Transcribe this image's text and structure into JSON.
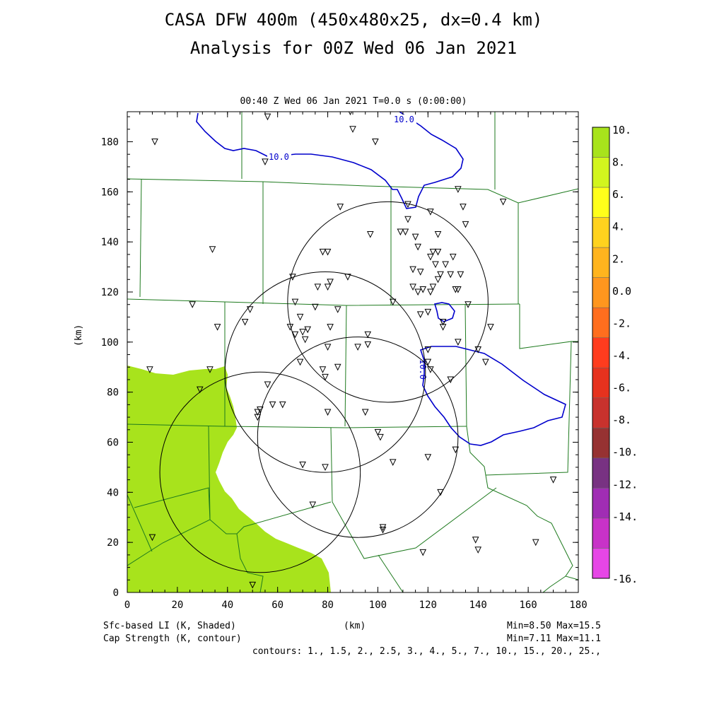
{
  "title": {
    "line1": "CASA DFW 400m (450x480x25, dx=0.4 km)",
    "line2": "Analysis for 00Z Wed 06 Jan 2021"
  },
  "subtitle": "00:40 Z Wed 06 Jan 2021   T=0.0 s (0:00:00)",
  "axes": {
    "xlabel": "(km)",
    "ylabel": "(km)",
    "x_ticks": [
      "0",
      "20",
      "40",
      "60",
      "80",
      "100",
      "120",
      "140",
      "160",
      "180"
    ],
    "y_ticks": [
      "0",
      "20",
      "40",
      "60",
      "80",
      "100",
      "120",
      "140",
      "160",
      "180"
    ],
    "xlim": [
      0,
      180
    ],
    "ylim": [
      0,
      192
    ]
  },
  "colorbar": {
    "labels": [
      "10.",
      "8.",
      "6.",
      "4.",
      "2.",
      "0.0",
      "-2.",
      "-4.",
      "-6.",
      "-8.",
      "-10.",
      "-12.",
      "-14.",
      "-16."
    ],
    "colors": [
      "#a8e31c",
      "#d2f51e",
      "#ffff1a",
      "#ffd21e",
      "#ffb41e",
      "#ff961e",
      "#ff6e1e",
      "#ff3c1e",
      "#e6321e",
      "#c8322d",
      "#963232",
      "#783282",
      "#a02db4",
      "#c832c8",
      "#e646e6"
    ]
  },
  "footer": {
    "left1": "Sfc-based LI (K, Shaded)",
    "left2": "Cap Strength (K, contour)",
    "center": "(km)",
    "right1": "Min=8.50 Max=15.5",
    "right2": "Min=7.11 Max=11.1",
    "contours": "contours: 1., 1.5, 2., 2.5, 3., 4., 5., 7., 10., 15., 20., 25.,"
  },
  "map_data": {
    "contour_labels": [
      "10.0",
      "10.0",
      "10.0"
    ],
    "fill_color": "#a8e31c",
    "contour_color": "#0000cc",
    "boundary_color": "#1e7a1e",
    "radar_circle_centers_km": [
      [
        104,
        116
      ],
      [
        79,
        88
      ],
      [
        92,
        62
      ],
      [
        53,
        48
      ]
    ],
    "radar_radius_km": 40,
    "stations_km": [
      [
        11,
        180
      ],
      [
        56,
        190
      ],
      [
        55,
        172
      ],
      [
        89,
        192
      ],
      [
        90,
        185
      ],
      [
        99,
        180
      ],
      [
        34,
        137
      ],
      [
        26,
        115
      ],
      [
        36,
        106
      ],
      [
        9,
        89
      ],
      [
        33,
        89
      ],
      [
        29,
        81
      ],
      [
        47,
        108
      ],
      [
        49,
        113
      ],
      [
        66,
        126
      ],
      [
        67,
        116
      ],
      [
        69,
        110
      ],
      [
        65,
        106
      ],
      [
        67,
        103
      ],
      [
        70,
        104
      ],
      [
        71,
        101
      ],
      [
        72,
        105
      ],
      [
        69,
        92
      ],
      [
        75,
        114
      ],
      [
        76,
        122
      ],
      [
        78,
        136
      ],
      [
        80,
        136
      ],
      [
        80,
        122
      ],
      [
        81,
        124
      ],
      [
        84,
        113
      ],
      [
        81,
        106
      ],
      [
        80,
        98
      ],
      [
        84,
        90
      ],
      [
        78,
        89
      ],
      [
        79,
        86
      ],
      [
        80,
        72
      ],
      [
        85,
        154
      ],
      [
        88,
        126
      ],
      [
        92,
        98
      ],
      [
        96,
        99
      ],
      [
        96,
        103
      ],
      [
        95,
        72
      ],
      [
        97,
        143
      ],
      [
        100,
        64
      ],
      [
        101,
        62
      ],
      [
        106,
        116
      ],
      [
        106,
        52
      ],
      [
        111,
        144
      ],
      [
        112,
        149
      ],
      [
        112,
        155
      ],
      [
        114,
        122
      ],
      [
        114,
        129
      ],
      [
        116,
        138
      ],
      [
        115,
        142
      ],
      [
        117,
        128
      ],
      [
        118,
        121
      ],
      [
        116,
        120
      ],
      [
        117,
        111
      ],
      [
        120,
        112
      ],
      [
        121,
        120
      ],
      [
        122,
        122
      ],
      [
        121,
        134
      ],
      [
        121,
        152
      ],
      [
        122,
        136
      ],
      [
        123,
        131
      ],
      [
        124,
        125
      ],
      [
        124,
        136
      ],
      [
        124,
        143
      ],
      [
        125,
        127
      ],
      [
        127,
        131
      ],
      [
        126,
        108
      ],
      [
        126,
        106
      ],
      [
        130,
        134
      ],
      [
        129,
        127
      ],
      [
        131,
        121
      ],
      [
        132,
        121
      ],
      [
        133,
        127
      ],
      [
        132,
        161
      ],
      [
        134,
        154
      ],
      [
        135,
        147
      ],
      [
        136,
        115
      ],
      [
        132,
        100
      ],
      [
        140,
        97
      ],
      [
        143,
        92
      ],
      [
        145,
        106
      ],
      [
        150,
        156
      ],
      [
        120,
        97
      ],
      [
        120,
        92
      ],
      [
        121,
        89
      ],
      [
        129,
        85
      ],
      [
        131,
        57
      ],
      [
        120,
        54
      ],
      [
        125,
        40
      ],
      [
        118,
        16
      ],
      [
        139,
        21
      ],
      [
        140,
        17
      ],
      [
        163,
        20
      ],
      [
        170,
        45
      ],
      [
        102,
        26
      ],
      [
        102,
        25
      ],
      [
        74,
        35
      ],
      [
        79,
        50
      ],
      [
        70,
        51
      ],
      [
        62,
        75
      ],
      [
        58,
        75
      ],
      [
        56,
        83
      ],
      [
        53,
        73
      ],
      [
        52,
        70
      ],
      [
        50,
        3
      ],
      [
        10,
        22
      ],
      [
        52,
        72
      ],
      [
        126,
        108
      ],
      [
        109,
        144
      ]
    ]
  }
}
